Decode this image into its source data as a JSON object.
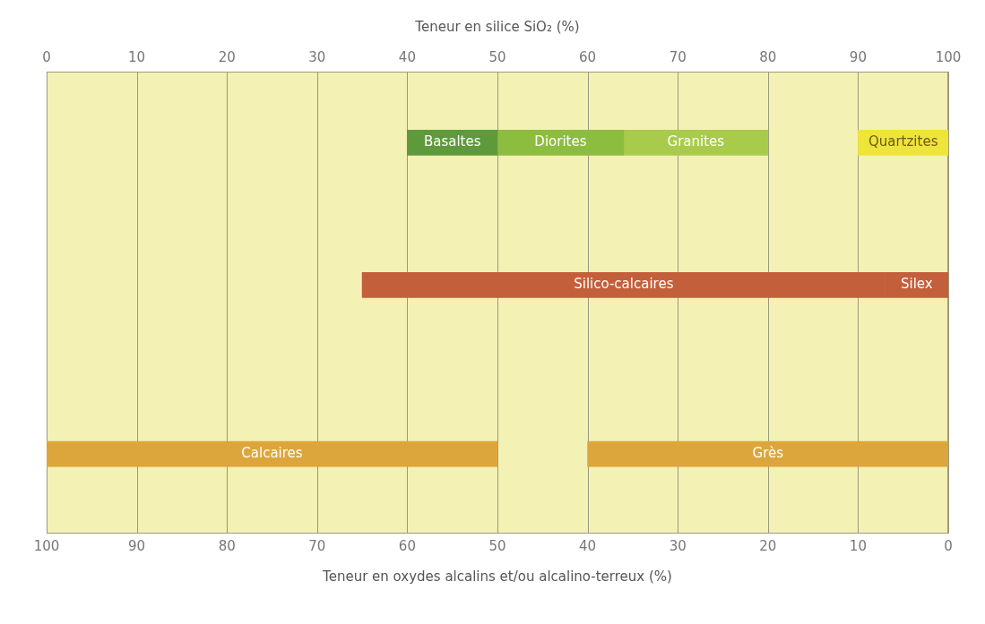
{
  "chart_data": [
    {
      "type": "bar",
      "orientation": "horizontal",
      "categories": [
        null,
        null
      ],
      "xlabel": "Teneur en silice SiO₂ (%)",
      "xlim": [
        0,
        100
      ],
      "xticks": [
        0,
        10,
        20,
        30,
        40,
        50,
        60,
        70,
        80,
        90,
        100
      ],
      "grid": "x",
      "series": [
        {
          "name": "Basaltes",
          "color": "#5e9a3c",
          "base": [
            40,
            null
          ],
          "values": [
            10,
            null
          ]
        },
        {
          "name": "Diorites",
          "color": "#8dbd3e",
          "base": [
            50,
            null
          ],
          "values": [
            14,
            null
          ]
        },
        {
          "name": "Granites",
          "color": "#a9cb4b",
          "base": [
            64,
            null
          ],
          "values": [
            16,
            null
          ]
        },
        {
          "name": "Quartzites",
          "color": "#efe43a",
          "base": [
            90,
            null
          ],
          "values": [
            10,
            null
          ]
        },
        {
          "name": "Silico-calcaires",
          "color": "#c45f3b",
          "base": [
            null,
            35
          ],
          "values": [
            null,
            58
          ]
        },
        {
          "name": "Silex",
          "color": "#c45f3b",
          "base": [
            null,
            93
          ],
          "values": [
            null,
            7
          ]
        }
      ]
    },
    {
      "type": "bar",
      "orientation": "horizontal",
      "categories": [
        null
      ],
      "xlabel": "Teneur en oxydes alcalins et/ou alcalino-terreux (%)",
      "xlim": [
        100,
        0
      ],
      "xticks": [
        100,
        90,
        80,
        70,
        60,
        50,
        40,
        30,
        20,
        10,
        0
      ],
      "grid": "x",
      "series": [
        {
          "name": "Calcaires",
          "color": "#dca63c",
          "base": [
            50
          ],
          "values": [
            50
          ]
        },
        {
          "name": "Grès",
          "color": "#dca63c",
          "base": [
            0
          ],
          "values": [
            40
          ]
        }
      ]
    }
  ]
}
